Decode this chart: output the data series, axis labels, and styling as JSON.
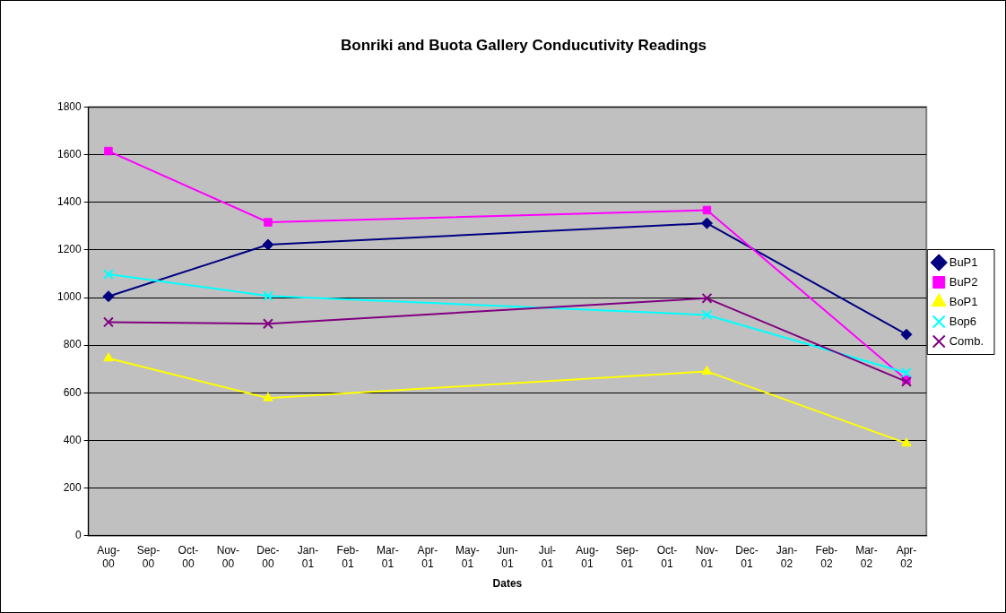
{
  "chart_data": {
    "type": "line",
    "title": "Bonriki and Buota Gallery Conducutivity Readings",
    "xlabel": "Dates",
    "categories": [
      "Aug-00",
      "Sep-00",
      "Oct-00",
      "Nov-00",
      "Dec-00",
      "Jan-01",
      "Feb-01",
      "Mar-01",
      "Apr-01",
      "May-01",
      "Jun-01",
      "Jul-01",
      "Aug-01",
      "Sep-01",
      "Oct-01",
      "Nov-01",
      "Dec-01",
      "Jan-02",
      "Feb-02",
      "Mar-02",
      "Apr-02"
    ],
    "series": [
      {
        "name": "BuP1",
        "color": "#000080",
        "marker": "diamond",
        "values": [
          1005,
          null,
          null,
          null,
          1222,
          null,
          null,
          null,
          null,
          null,
          null,
          null,
          null,
          null,
          null,
          1312,
          null,
          null,
          null,
          null,
          845
        ]
      },
      {
        "name": "BuP2",
        "color": "#ff00ff",
        "marker": "square",
        "values": [
          1615,
          null,
          null,
          null,
          1316,
          null,
          null,
          null,
          null,
          null,
          null,
          null,
          null,
          null,
          null,
          1367,
          null,
          null,
          null,
          null,
          655
        ]
      },
      {
        "name": "BoP1",
        "color": "#ffff00",
        "marker": "triangle",
        "values": [
          745,
          null,
          null,
          null,
          578,
          null,
          null,
          null,
          null,
          null,
          null,
          null,
          null,
          null,
          null,
          690,
          null,
          null,
          null,
          null,
          388
        ]
      },
      {
        "name": "Bop6",
        "color": "#00ffff",
        "marker": "cross",
        "values": [
          1098,
          null,
          null,
          null,
          1007,
          null,
          null,
          null,
          null,
          null,
          null,
          null,
          null,
          null,
          null,
          927,
          null,
          null,
          null,
          null,
          684
        ]
      },
      {
        "name": "Comb.",
        "color": "#800080",
        "marker": "cross",
        "values": [
          897,
          null,
          null,
          null,
          890,
          null,
          null,
          null,
          null,
          null,
          null,
          null,
          null,
          null,
          null,
          997,
          null,
          null,
          null,
          null,
          647
        ]
      }
    ],
    "ylim": [
      0,
      1800
    ],
    "yticks": [
      0,
      200,
      400,
      600,
      800,
      1000,
      1200,
      1400,
      1600,
      1800
    ],
    "grid": "y",
    "legend": "right",
    "line_style": "solid"
  }
}
